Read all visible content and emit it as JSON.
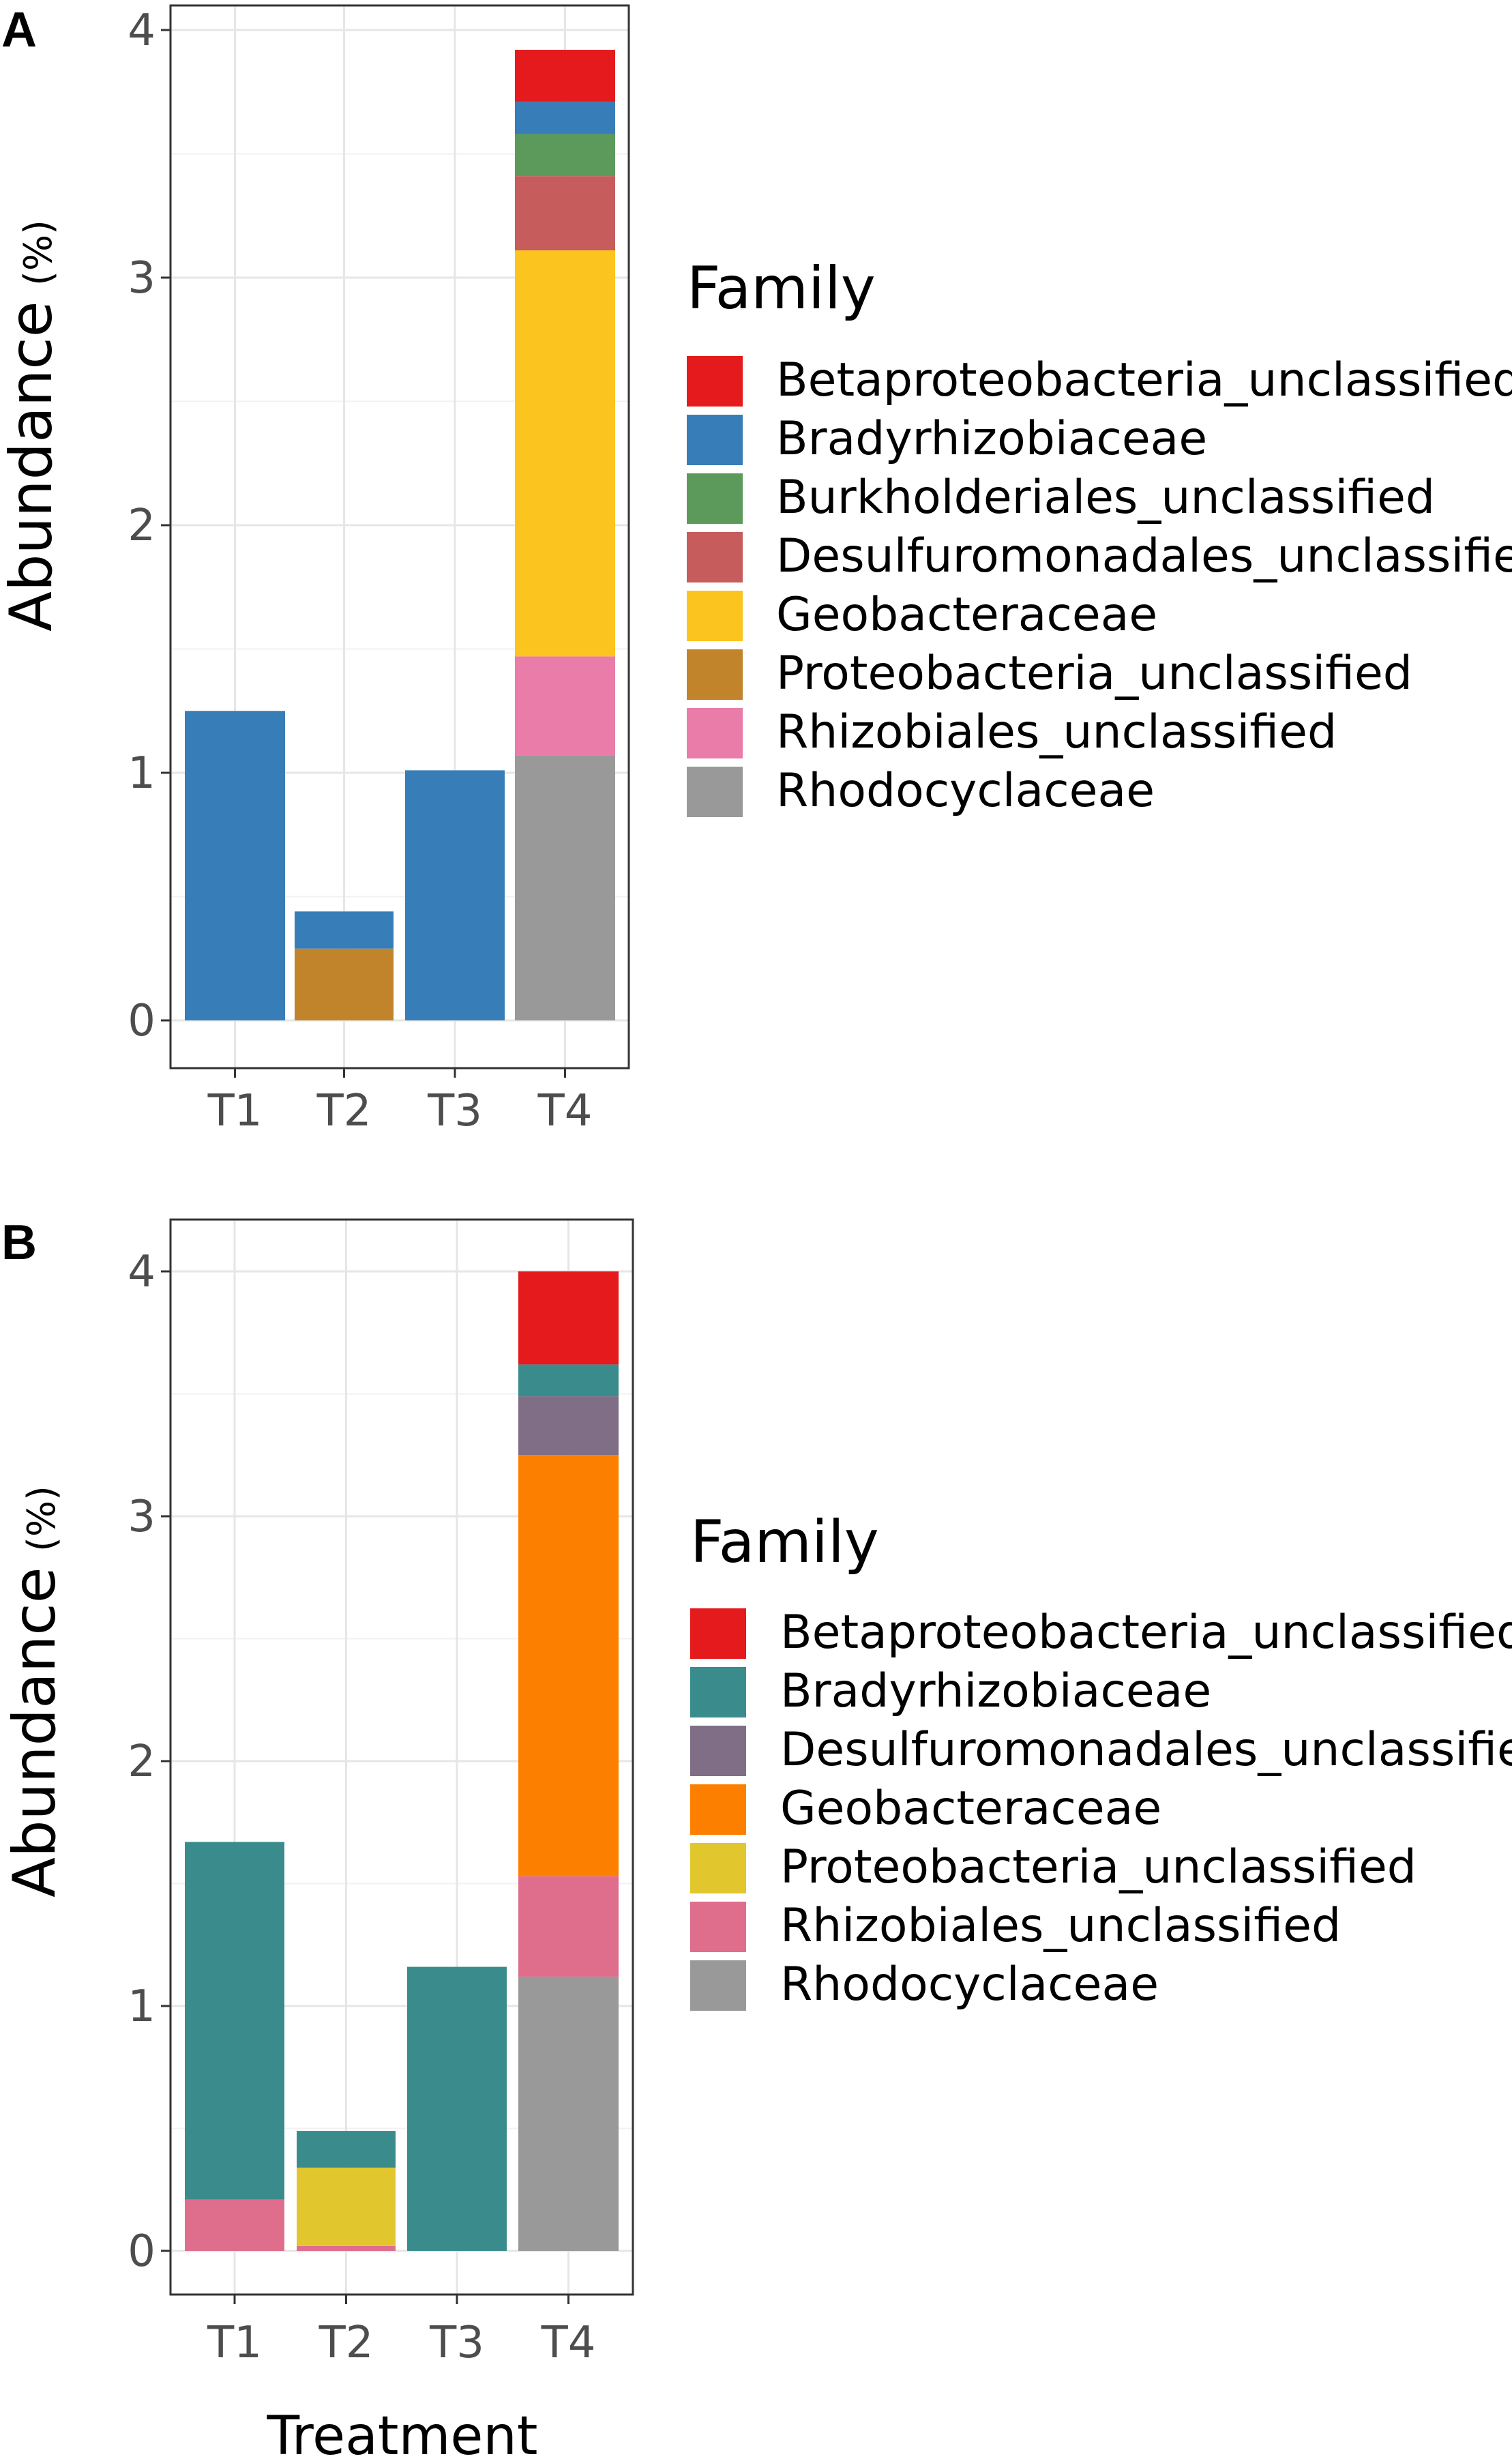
{
  "xlabel": "Treatment",
  "chart_data": [
    {
      "type": "bar",
      "panel": "A",
      "stacked": true,
      "ylabel": "Abundance",
      "ylabel_unit": "(%)",
      "xlabel": "",
      "ylim": [
        0,
        4.2
      ],
      "yticks": [
        0,
        1,
        2,
        3,
        4
      ],
      "grid": true,
      "legend_title": "Family",
      "categories": [
        "T1",
        "T2",
        "T3",
        "T4"
      ],
      "series": [
        {
          "name": "Betaproteobacteria_unclassified",
          "color": "#e41a1c",
          "values": [
            0,
            0,
            0,
            0.21
          ]
        },
        {
          "name": "Bradyrhizobiaceae",
          "color": "#377eb8",
          "values": [
            1.25,
            0.15,
            1.01,
            0.13
          ]
        },
        {
          "name": "Burkholderiales_unclassified",
          "color": "#5c9a5c",
          "values": [
            0,
            0,
            0,
            0.17
          ]
        },
        {
          "name": "Desulfuromonadales_unclassified",
          "color": "#c65c5c",
          "values": [
            0,
            0,
            0,
            0.3
          ]
        },
        {
          "name": "Geobacteraceae",
          "color": "#fcc41e",
          "values": [
            0,
            0,
            0,
            1.64
          ]
        },
        {
          "name": "Proteobacteria_unclassified",
          "color": "#c1842b",
          "values": [
            0,
            0.29,
            0,
            0
          ]
        },
        {
          "name": "Rhizobiales_unclassified",
          "color": "#e97ca8",
          "values": [
            0,
            0,
            0,
            0.4
          ]
        },
        {
          "name": "Rhodocyclaceae",
          "color": "#999999",
          "values": [
            0,
            0,
            0,
            1.07
          ]
        }
      ]
    },
    {
      "type": "bar",
      "panel": "B",
      "stacked": true,
      "ylabel": "Abundance",
      "ylabel_unit": "(%)",
      "xlabel": "Treatment",
      "ylim": [
        0,
        4.2
      ],
      "yticks": [
        0,
        1,
        2,
        3,
        4
      ],
      "grid": true,
      "legend_title": "Family",
      "categories": [
        "T1",
        "T2",
        "T3",
        "T4"
      ],
      "series": [
        {
          "name": "Betaproteobacteria_unclassified",
          "color": "#e41a1c",
          "values": [
            0,
            0,
            0,
            0.38
          ]
        },
        {
          "name": "Bradyrhizobiaceae",
          "color": "#3a8c8c",
          "values": [
            1.46,
            0.15,
            1.16,
            0.13
          ]
        },
        {
          "name": "Desulfuromonadales_unclassified",
          "color": "#7f6e85",
          "values": [
            0,
            0,
            0,
            0.24
          ]
        },
        {
          "name": "Geobacteraceae",
          "color": "#fd7f00",
          "values": [
            0,
            0,
            0,
            1.72
          ]
        },
        {
          "name": "Proteobacteria_unclassified",
          "color": "#e1c72d",
          "values": [
            0,
            0.32,
            0,
            0
          ]
        },
        {
          "name": "Rhizobiales_unclassified",
          "color": "#de6e8c",
          "values": [
            0.21,
            0.02,
            0,
            0.41
          ]
        },
        {
          "name": "Rhodocyclaceae",
          "color": "#999999",
          "values": [
            0,
            0,
            0,
            1.12
          ]
        }
      ]
    }
  ]
}
